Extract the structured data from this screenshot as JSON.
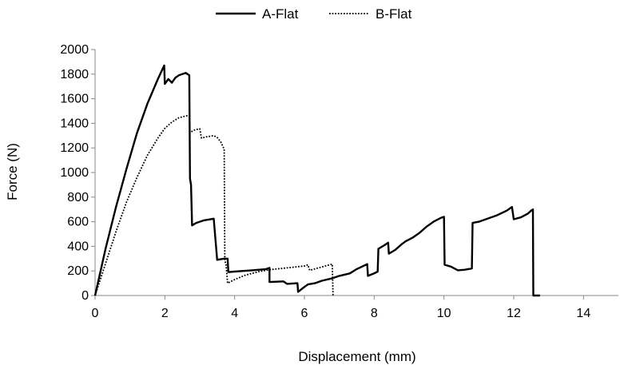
{
  "chart_data": {
    "type": "line",
    "title": "",
    "xlabel": "Displacement (mm)",
    "ylabel": "Force (N)",
    "xlim": [
      0,
      15
    ],
    "ylim": [
      0,
      2000
    ],
    "x_ticks": [
      0,
      2,
      4,
      6,
      8,
      10,
      12,
      14
    ],
    "y_ticks": [
      0,
      200,
      400,
      600,
      800,
      1000,
      1200,
      1400,
      1600,
      1800,
      2000
    ],
    "grid": false,
    "legend_position": "top",
    "series": [
      {
        "name": "A-Flat",
        "style": "solid",
        "color": "#000000",
        "points": [
          [
            0.0,
            0
          ],
          [
            0.3,
            380
          ],
          [
            0.6,
            720
          ],
          [
            0.9,
            1030
          ],
          [
            1.2,
            1320
          ],
          [
            1.5,
            1560
          ],
          [
            1.8,
            1760
          ],
          [
            1.98,
            1870
          ],
          [
            2.0,
            1720
          ],
          [
            2.1,
            1760
          ],
          [
            2.2,
            1730
          ],
          [
            2.3,
            1770
          ],
          [
            2.4,
            1790
          ],
          [
            2.5,
            1800
          ],
          [
            2.6,
            1810
          ],
          [
            2.7,
            1790
          ],
          [
            2.72,
            950
          ],
          [
            2.75,
            900
          ],
          [
            2.78,
            570
          ],
          [
            2.9,
            590
          ],
          [
            3.0,
            600
          ],
          [
            3.1,
            610
          ],
          [
            3.2,
            615
          ],
          [
            3.4,
            625
          ],
          [
            3.5,
            290
          ],
          [
            3.7,
            300
          ],
          [
            3.8,
            300
          ],
          [
            3.82,
            190
          ],
          [
            4.0,
            195
          ],
          [
            4.5,
            205
          ],
          [
            4.9,
            215
          ],
          [
            5.0,
            225
          ],
          [
            5.0,
            110
          ],
          [
            5.4,
            115
          ],
          [
            5.5,
            95
          ],
          [
            5.8,
            100
          ],
          [
            5.82,
            30
          ],
          [
            6.0,
            70
          ],
          [
            6.1,
            90
          ],
          [
            6.3,
            100
          ],
          [
            6.5,
            120
          ],
          [
            6.8,
            140
          ],
          [
            7.0,
            160
          ],
          [
            7.3,
            180
          ],
          [
            7.5,
            215
          ],
          [
            7.8,
            255
          ],
          [
            7.82,
            160
          ],
          [
            8.0,
            180
          ],
          [
            8.1,
            195
          ],
          [
            8.12,
            380
          ],
          [
            8.3,
            410
          ],
          [
            8.4,
            430
          ],
          [
            8.42,
            340
          ],
          [
            8.6,
            370
          ],
          [
            8.8,
            420
          ],
          [
            8.9,
            440
          ],
          [
            9.1,
            470
          ],
          [
            9.3,
            510
          ],
          [
            9.5,
            560
          ],
          [
            9.7,
            600
          ],
          [
            9.9,
            630
          ],
          [
            10.0,
            640
          ],
          [
            10.02,
            250
          ],
          [
            10.2,
            235
          ],
          [
            10.4,
            205
          ],
          [
            10.6,
            210
          ],
          [
            10.8,
            220
          ],
          [
            10.82,
            590
          ],
          [
            11.0,
            600
          ],
          [
            11.2,
            620
          ],
          [
            11.5,
            650
          ],
          [
            11.8,
            690
          ],
          [
            11.95,
            720
          ],
          [
            12.0,
            620
          ],
          [
            12.2,
            635
          ],
          [
            12.4,
            665
          ],
          [
            12.5,
            690
          ],
          [
            12.55,
            700
          ],
          [
            12.56,
            0
          ],
          [
            12.75,
            0
          ]
        ]
      },
      {
        "name": "B-Flat",
        "style": "dotted",
        "color": "#000000",
        "points": [
          [
            0.0,
            0
          ],
          [
            0.3,
            260
          ],
          [
            0.6,
            520
          ],
          [
            0.9,
            760
          ],
          [
            1.2,
            960
          ],
          [
            1.5,
            1140
          ],
          [
            1.8,
            1280
          ],
          [
            2.0,
            1360
          ],
          [
            2.2,
            1410
          ],
          [
            2.4,
            1445
          ],
          [
            2.6,
            1460
          ],
          [
            2.7,
            1465
          ],
          [
            2.72,
            1320
          ],
          [
            2.8,
            1340
          ],
          [
            2.9,
            1350
          ],
          [
            3.0,
            1355
          ],
          [
            3.05,
            1280
          ],
          [
            3.2,
            1290
          ],
          [
            3.4,
            1300
          ],
          [
            3.5,
            1285
          ],
          [
            3.6,
            1250
          ],
          [
            3.7,
            1190
          ],
          [
            3.72,
            280
          ],
          [
            3.75,
            260
          ],
          [
            3.8,
            100
          ],
          [
            4.0,
            130
          ],
          [
            4.3,
            165
          ],
          [
            4.7,
            195
          ],
          [
            5.0,
            210
          ],
          [
            5.5,
            225
          ],
          [
            6.0,
            240
          ],
          [
            6.1,
            250
          ],
          [
            6.15,
            205
          ],
          [
            6.4,
            225
          ],
          [
            6.6,
            240
          ],
          [
            6.8,
            255
          ],
          [
            6.82,
            0
          ]
        ]
      }
    ]
  }
}
